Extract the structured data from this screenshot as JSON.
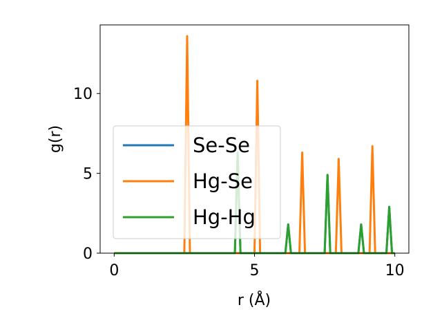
{
  "chart_data": {
    "type": "line",
    "title": "",
    "xlabel": "r (Å)",
    "ylabel": "g(r)",
    "xlim": [
      -0.5,
      10.5
    ],
    "ylim": [
      0,
      14.3
    ],
    "x_ticks": [
      0,
      5,
      10
    ],
    "x_tick_labels": [
      "0",
      "5",
      "10"
    ],
    "y_ticks": [
      0,
      5,
      10
    ],
    "y_tick_labels": [
      "0",
      "5",
      "10"
    ],
    "grid": false,
    "legend_position": "center-left",
    "peak_half_width": 0.1,
    "series": [
      {
        "name": "Se-Se",
        "color": "#1f77b4",
        "peaks": [
          [
            4.4,
            6.3
          ],
          [
            6.2,
            1.8
          ],
          [
            7.6,
            4.9
          ],
          [
            8.8,
            1.8
          ],
          [
            9.8,
            2.9
          ]
        ]
      },
      {
        "name": "Hg-Se",
        "color": "#ff7f0e",
        "peaks": [
          [
            2.6,
            13.6
          ],
          [
            5.1,
            10.8
          ],
          [
            6.7,
            6.3
          ],
          [
            8.0,
            5.9
          ],
          [
            9.2,
            6.7
          ]
        ]
      },
      {
        "name": "Hg-Hg",
        "color": "#2ca02c",
        "peaks": [
          [
            4.4,
            6.3
          ],
          [
            6.2,
            1.8
          ],
          [
            7.6,
            4.9
          ],
          [
            8.8,
            1.8
          ],
          [
            9.8,
            2.9
          ]
        ]
      }
    ]
  }
}
